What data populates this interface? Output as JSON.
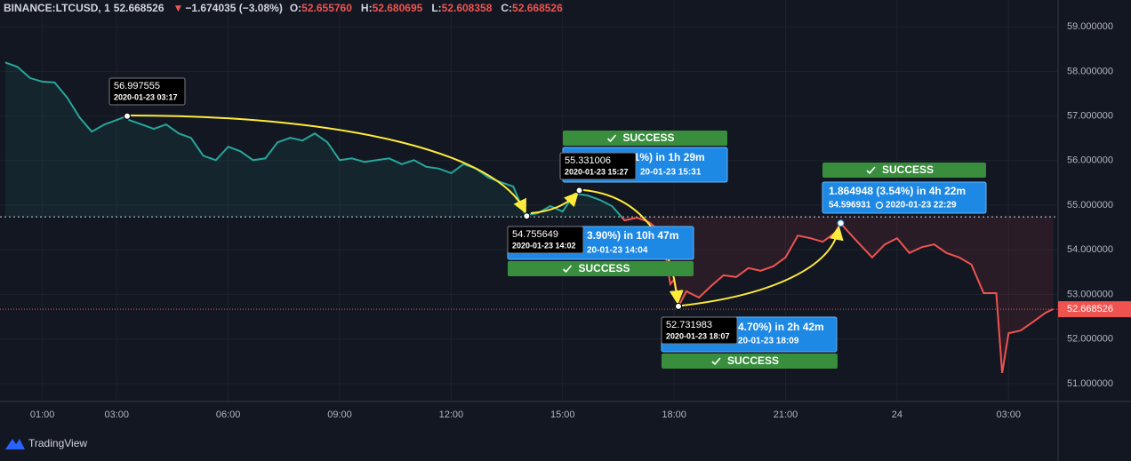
{
  "header": {
    "symbol": "BINANCE:LTCUSD, 1",
    "price": "52.668526",
    "change": "−1.674035 (−3.08%)",
    "open_label": "O:",
    "open": "52.655760",
    "high_label": "H:",
    "high": "52.680695",
    "low_label": "L:",
    "low": "52.608358",
    "close_label": "C:",
    "close": "52.668526"
  },
  "chart_data": {
    "type": "line",
    "x": [
      0,
      0.33,
      0.67,
      1,
      1.33,
      1.67,
      2,
      2.33,
      2.67,
      3,
      3.28,
      3.33,
      3.67,
      4,
      4.33,
      4.67,
      5,
      5.33,
      5.67,
      6,
      6.33,
      6.67,
      7,
      7.33,
      7.67,
      8,
      8.33,
      8.67,
      9,
      9.33,
      9.67,
      10,
      10.33,
      10.67,
      11,
      11.33,
      11.67,
      12,
      12.33,
      12.67,
      13,
      13.33,
      13.67,
      14,
      14.33,
      14.67,
      15,
      15.33,
      15.67,
      16,
      16.33,
      16.67,
      17,
      17.33,
      17.67,
      17.9,
      18,
      18.12,
      18.33,
      18.67,
      19,
      19.33,
      19.67,
      20,
      20.33,
      20.67,
      21,
      21.33,
      21.67,
      22,
      22.33,
      22.48,
      22.67,
      23,
      23.33,
      23.67,
      24,
      24.33,
      24.67,
      25,
      25.33,
      25.67,
      26,
      26.33,
      26.67,
      26.83,
      27,
      27.33,
      27.67,
      28,
      28.2
    ],
    "values": [
      58.2,
      58.1,
      57.85,
      57.77,
      57.75,
      57.41,
      56.97,
      56.65,
      56.81,
      56.91,
      57.0,
      56.91,
      56.81,
      56.71,
      56.81,
      56.61,
      56.51,
      56.11,
      56.01,
      56.31,
      56.21,
      56.01,
      56.05,
      56.41,
      56.51,
      56.45,
      56.61,
      56.41,
      56.01,
      56.05,
      55.97,
      56.01,
      56.05,
      55.92,
      56.01,
      55.86,
      55.82,
      55.72,
      55.92,
      55.82,
      55.62,
      55.52,
      55.42,
      54.78,
      54.82,
      54.98,
      54.86,
      55.26,
      55.22,
      55.12,
      54.98,
      54.66,
      54.72,
      54.62,
      54.38,
      53.23,
      53.33,
      52.73,
      53.07,
      52.93,
      53.19,
      53.43,
      53.39,
      53.59,
      53.53,
      53.63,
      53.83,
      54.32,
      54.26,
      54.18,
      54.38,
      54.6,
      54.42,
      54.12,
      53.83,
      54.12,
      54.26,
      53.93,
      54.06,
      54.12,
      53.93,
      53.83,
      53.67,
      53.03,
      53.03,
      51.24,
      52.13,
      52.19,
      52.39,
      52.59,
      52.67
    ],
    "colors": {
      "above": "#26a69a",
      "below": "#ef5350"
    },
    "baseline": 54.74,
    "last_price": 52.668526,
    "xlim": [
      -0.14,
      28.31
    ],
    "ylim": [
      50.6,
      59.6
    ],
    "xticks": [
      {
        "value": 1,
        "label": "01:00"
      },
      {
        "value": 3,
        "label": "03:00"
      },
      {
        "value": 6,
        "label": "06:00"
      },
      {
        "value": 9,
        "label": "09:00"
      },
      {
        "value": 12,
        "label": "12:00"
      },
      {
        "value": 15,
        "label": "15:00"
      },
      {
        "value": 18,
        "label": "18:00"
      },
      {
        "value": 21,
        "label": "21:00"
      },
      24,
      {
        "value": 27,
        "label": "03:00"
      }
    ],
    "yticks": [
      {
        "value": 51,
        "label": "51.000000"
      },
      {
        "value": 52,
        "label": "52.000000"
      },
      {
        "value": 53,
        "label": "53.000000"
      },
      {
        "value": 54,
        "label": "54.000000"
      },
      {
        "value": 55,
        "label": "55.000000"
      },
      {
        "value": 56,
        "label": "56.000000"
      },
      {
        "value": 57,
        "label": "57.000000"
      },
      {
        "value": 58,
        "label": "58.000000"
      },
      {
        "value": 59,
        "label": "59.000000"
      }
    ],
    "grid": true,
    "annotations": [
      {
        "price": 56.997555,
        "time": "2020-01-23 03:17"
      },
      {
        "price": 54.755649,
        "time": "2020-01-23 14:02"
      },
      {
        "price": 55.331006,
        "time": "2020-01-23 15:27"
      },
      {
        "price": 52.731983,
        "time": "2020-01-23 18:07"
      }
    ],
    "trades": [
      {
        "status": "SUCCESS",
        "result": "3.90%) in 10h 47m",
        "end": "20-01-23  14:04"
      },
      {
        "status": "SUCCESS",
        "result": "01%) in 1h 29m",
        "end": "20-01-23  15:31"
      },
      {
        "status": "SUCCESS",
        "result": "4.70%) in 2h 42m",
        "end": "20-01-23  18:09"
      },
      {
        "status": "SUCCESS",
        "result": "1.864948 (3.54%) in 4h 22m",
        "end_price": 54.596931,
        "end": "2020-01-23  22:29"
      }
    ]
  },
  "footer": {
    "brand": "TradingView"
  }
}
